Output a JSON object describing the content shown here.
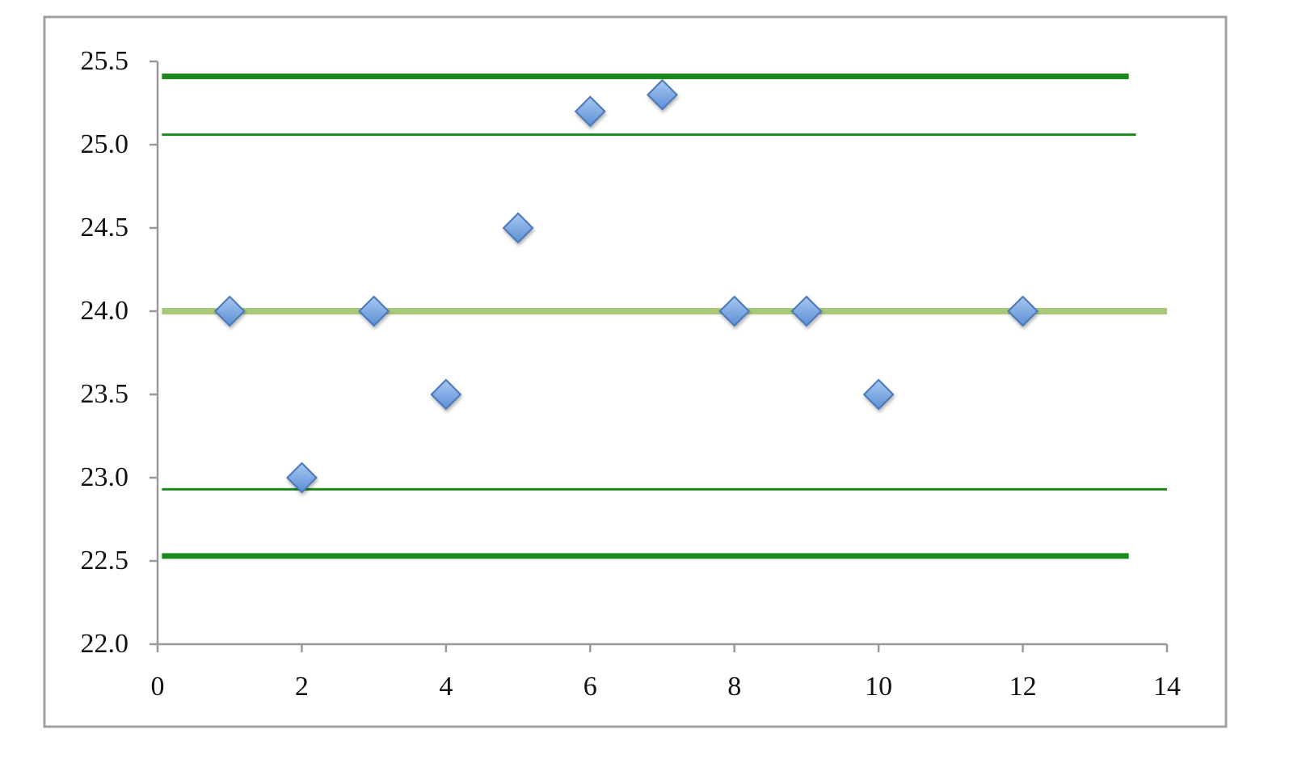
{
  "chart_data": {
    "type": "scatter",
    "xlim": [
      0,
      14
    ],
    "ylim": [
      22,
      25.5
    ],
    "xticks": [
      0,
      2,
      4,
      6,
      8,
      10,
      12,
      14
    ],
    "yticks": [
      {
        "value": 22,
        "label": "22.0"
      },
      {
        "value": 22.5,
        "label": "22.5"
      },
      {
        "value": 23,
        "label": "23.0"
      },
      {
        "value": 23.5,
        "label": "23.5"
      },
      {
        "value": 24,
        "label": "24.0"
      },
      {
        "value": 24.5,
        "label": "24.5"
      },
      {
        "value": 25,
        "label": "25.0"
      },
      {
        "value": 25.5,
        "label": "25.5"
      }
    ],
    "series": [
      {
        "type": "line",
        "color": "#1e8a1e",
        "line_width": 7,
        "x": [
          0.06,
          13.47
        ],
        "values": [
          25.41,
          25.41
        ]
      },
      {
        "type": "line",
        "color": "#1e8a1e",
        "line_width": 3,
        "x": [
          0.06,
          13.57
        ],
        "values": [
          25.06,
          25.06
        ]
      },
      {
        "type": "line",
        "color": "#a9c97a",
        "line_width": 8,
        "x": [
          0.06,
          14
        ],
        "values": [
          24,
          24
        ]
      },
      {
        "type": "line",
        "color": "#1e8a1e",
        "line_width": 3,
        "x": [
          0.06,
          14
        ],
        "values": [
          22.93,
          22.93
        ]
      },
      {
        "type": "line",
        "color": "#1e8a1e",
        "line_width": 7,
        "x": [
          0.06,
          13.47
        ],
        "values": [
          22.53,
          22.53
        ]
      },
      {
        "type": "scatter",
        "color": "#7eaae2",
        "x": [
          1,
          2,
          3,
          4,
          5,
          6,
          7,
          8,
          9,
          10,
          12
        ],
        "values": [
          24,
          23,
          24,
          23.5,
          24.5,
          25.2,
          25.3,
          24,
          24,
          23.5,
          24
        ]
      }
    ]
  }
}
